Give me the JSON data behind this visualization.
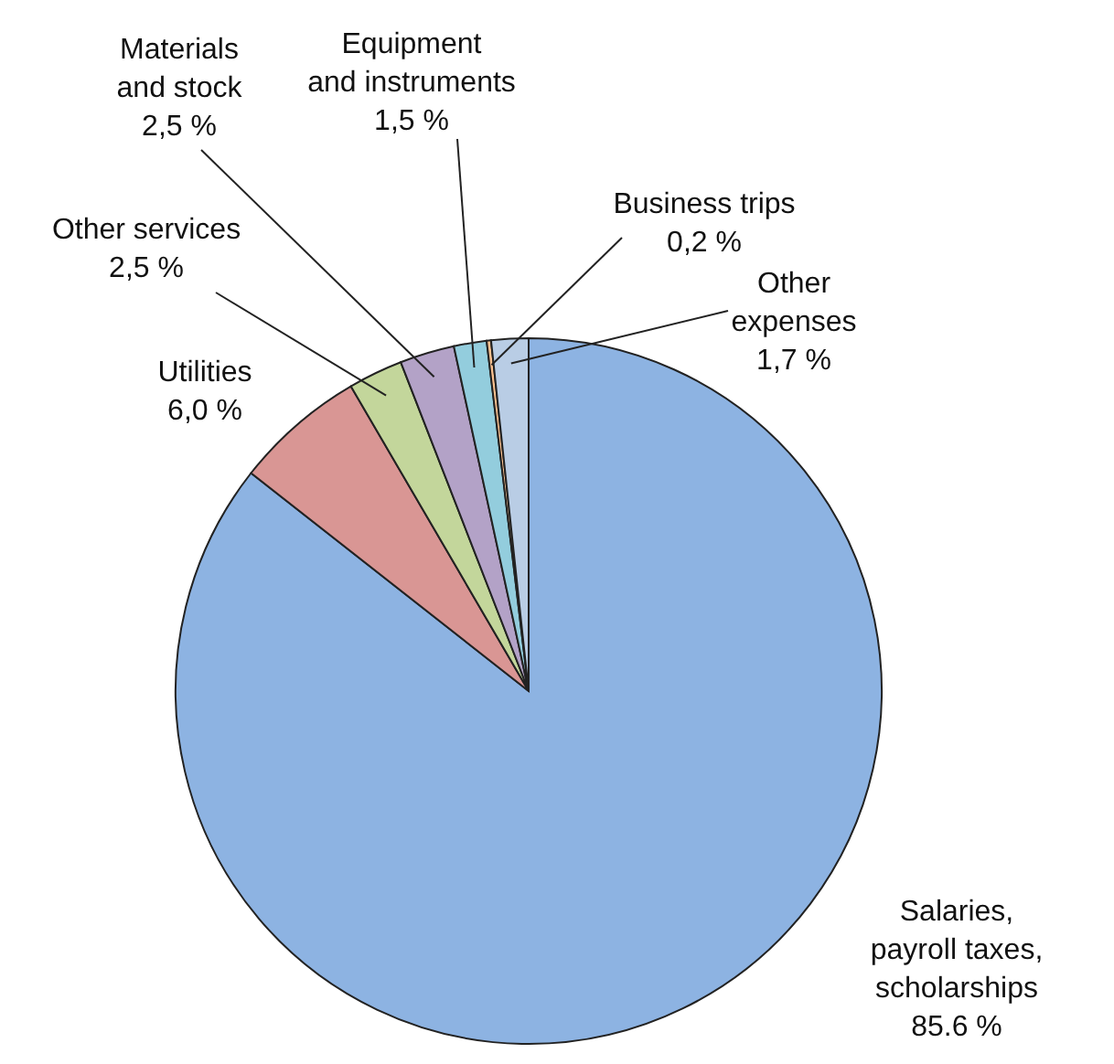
{
  "chart_data": {
    "type": "pie",
    "categories": [
      "Salaries,\npayroll taxes,\nscholarships",
      "Utilities",
      "Other services",
      "Materials\nand stock",
      "Equipment\nand instruments",
      "Business trips",
      "Other\nexpenses"
    ],
    "values": [
      85.6,
      6.0,
      2.5,
      2.5,
      1.5,
      0.2,
      1.7
    ],
    "value_labels": [
      "85.6 %",
      "6,0 %",
      "2,5 %",
      "2,5 %",
      "1,5 %",
      "0,2 %",
      "1,7 %"
    ],
    "colors": [
      "#8db3e2",
      "#d99694",
      "#c3d69b",
      "#b3a2c7",
      "#93cddd",
      "#fac08f",
      "#b9cde5"
    ]
  }
}
